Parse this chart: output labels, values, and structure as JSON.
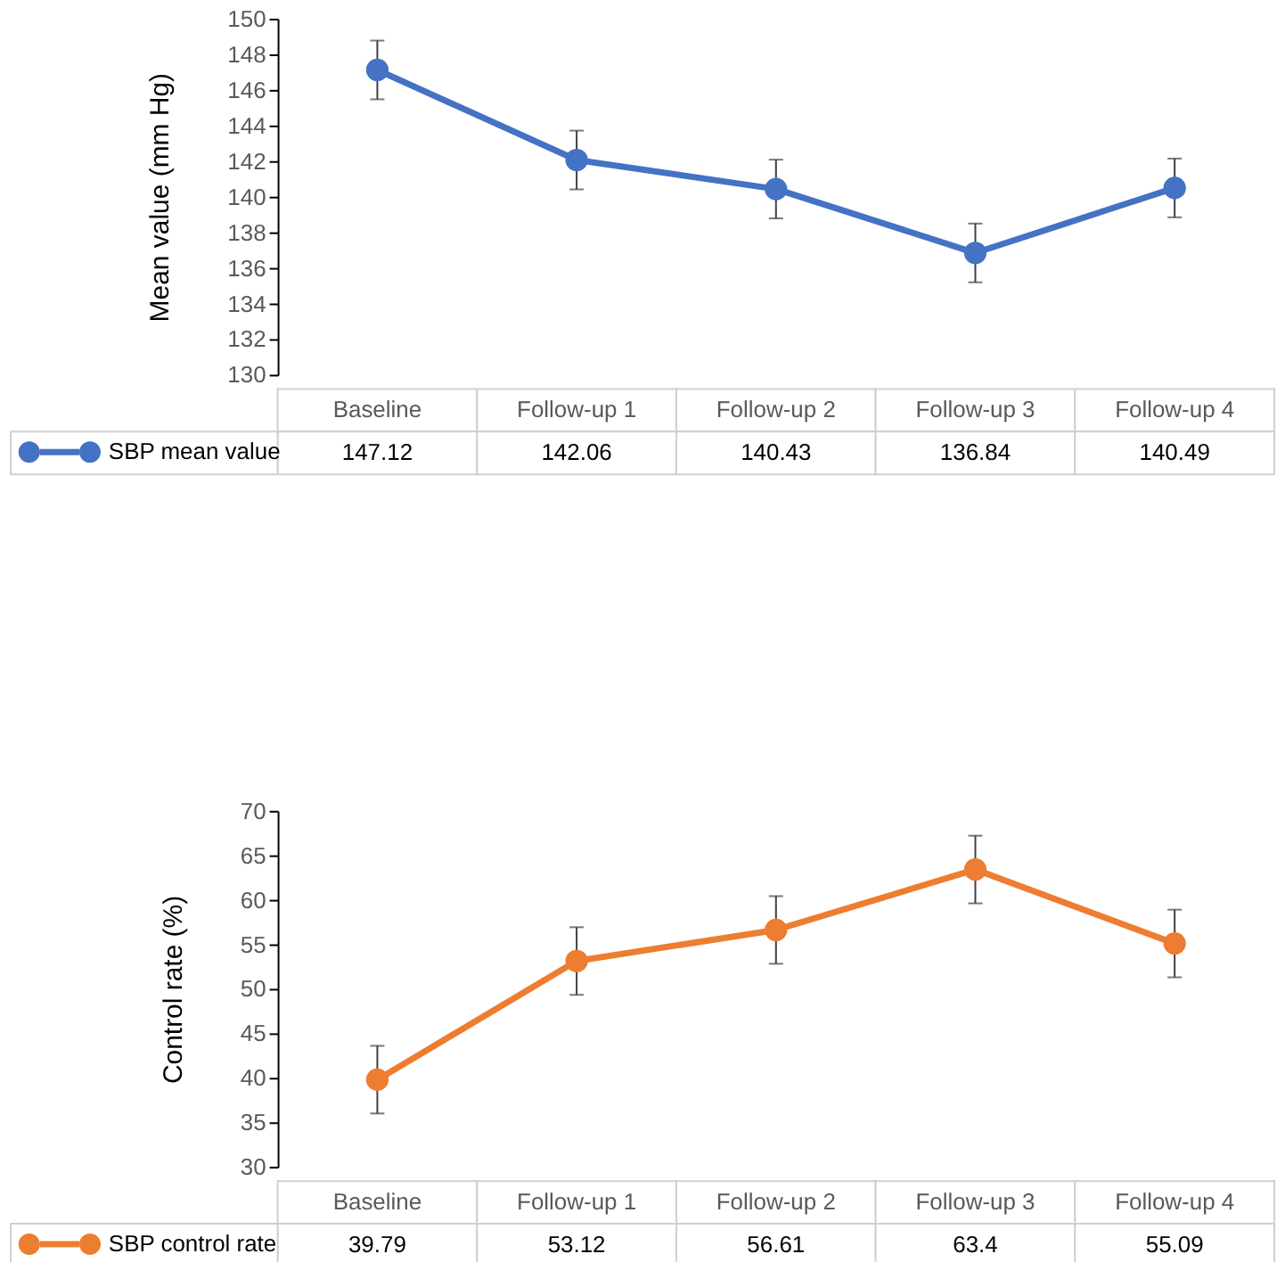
{
  "chart_data": [
    {
      "type": "line",
      "ylabel": "Mean value (mm Hg)",
      "categories": [
        "Baseline",
        "Follow-up 1",
        "Follow-up 2",
        "Follow-up 3",
        "Follow-up 4"
      ],
      "series": [
        {
          "name": "SBP mean value",
          "color": "#4472c4",
          "values": [
            147.12,
            142.06,
            140.43,
            136.84,
            140.49
          ],
          "errors": [
            1.65,
            1.65,
            1.65,
            1.65,
            1.65
          ]
        }
      ],
      "ylim": [
        130,
        150
      ],
      "yticks": [
        130,
        132,
        134,
        136,
        138,
        140,
        142,
        144,
        146,
        148,
        150
      ],
      "grid": false,
      "marker": "circle",
      "data_labels": true,
      "legend": "bottom left"
    },
    {
      "type": "line",
      "ylabel": "Control rate (%)",
      "categories": [
        "Baseline",
        "Follow-up 1",
        "Follow-up 2",
        "Follow-up 3",
        "Follow-up 4"
      ],
      "series": [
        {
          "name": "SBP control rate",
          "color": "#ed7d31",
          "values": [
            39.79,
            53.12,
            56.61,
            63.4,
            55.09
          ],
          "errors": [
            3.8,
            3.8,
            3.8,
            3.8,
            3.8
          ]
        }
      ],
      "ylim": [
        30,
        70
      ],
      "yticks": [
        30,
        35,
        40,
        45,
        50,
        55,
        60,
        65,
        70
      ],
      "grid": false,
      "marker": "circle",
      "data_labels": true,
      "legend": "bottom left"
    }
  ]
}
